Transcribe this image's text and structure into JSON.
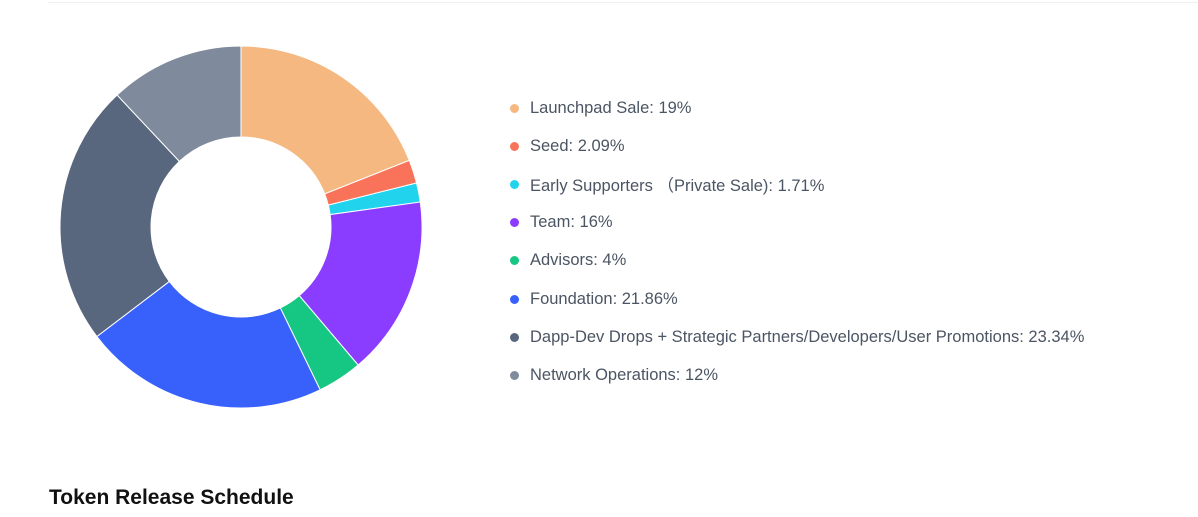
{
  "chart_data": {
    "type": "pie",
    "donut": true,
    "slices": [
      {
        "label": "Launchpad Sale: 19%",
        "name": "Launchpad Sale",
        "value": 19,
        "color": "#f5b880"
      },
      {
        "label": "Seed: 2.09%",
        "name": "Seed",
        "value": 2.09,
        "color": "#f87359"
      },
      {
        "label": "Early Supporters （Private Sale): 1.71%",
        "name": "Early Supporters （Private Sale)",
        "value": 1.71,
        "color": "#22d3ee"
      },
      {
        "label": "Team: 16%",
        "name": "Team",
        "value": 16,
        "color": "#8b3dff"
      },
      {
        "label": "Advisors: 4%",
        "name": "Advisors",
        "value": 4,
        "color": "#16c784"
      },
      {
        "label": "Foundation: 21.86%",
        "name": "Foundation",
        "value": 21.86,
        "color": "#3861fb"
      },
      {
        "label": "Dapp-Dev Drops + Strategic Partners/Developers/User Promotions: 23.34%",
        "name": "Dapp-Dev Drops + Strategic Partners/Developers/User Promotions",
        "value": 23.34,
        "color": "#58667e"
      },
      {
        "label": "Network Operations: 12%",
        "name": "Network Operations",
        "value": 12,
        "color": "#808a9d"
      }
    ],
    "legend_position": "right"
  },
  "section": {
    "heading": "Token Release Schedule"
  }
}
